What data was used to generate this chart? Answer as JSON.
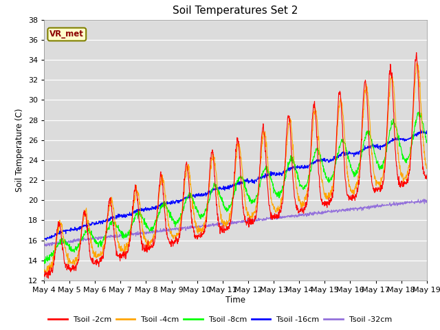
{
  "title": "Soil Temperatures Set 2",
  "xlabel": "Time",
  "ylabel": "Soil Temperature (C)",
  "ylim": [
    12,
    38
  ],
  "yticks": [
    12,
    14,
    16,
    18,
    20,
    22,
    24,
    26,
    28,
    30,
    32,
    34,
    36,
    38
  ],
  "annotation_text": "VR_met",
  "plot_bg_color": "#dcdcdc",
  "legend_labels": [
    "Tsoil -2cm",
    "Tsoil -4cm",
    "Tsoil -8cm",
    "Tsoil -16cm",
    "Tsoil -32cm"
  ],
  "line_colors": [
    "red",
    "orange",
    "lime",
    "blue",
    "mediumpurple"
  ],
  "num_days": 15,
  "start_day": 4,
  "figsize": [
    6.4,
    4.8
  ],
  "dpi": 100
}
